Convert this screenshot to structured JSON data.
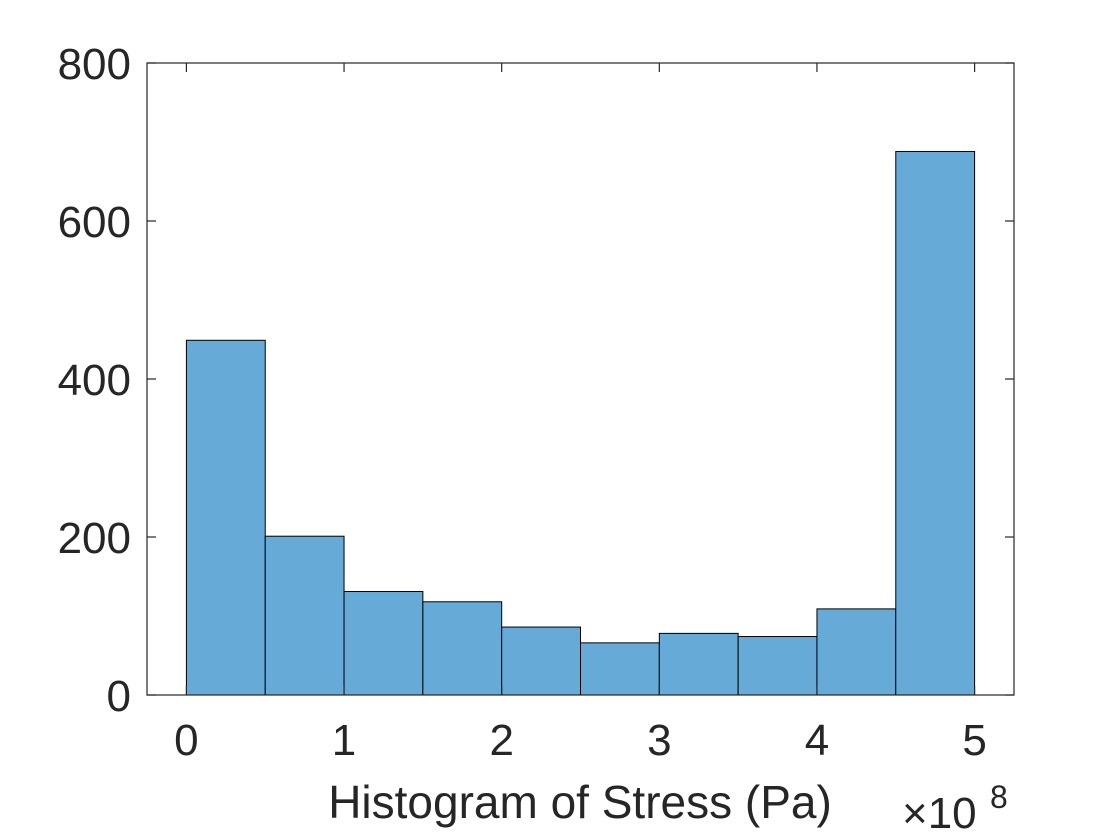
{
  "chart_data": {
    "type": "bar",
    "bin_edges": [
      0,
      0.5,
      1,
      1.5,
      2,
      2.5,
      3,
      3.5,
      4,
      4.5,
      5
    ],
    "values": [
      449,
      201,
      131,
      118,
      86,
      66,
      78,
      74,
      109,
      688
    ],
    "xlabel": "Histogram of Stress (Pa)",
    "x_exponent_prefix": "×10",
    "x_exponent": "8",
    "xlim": [
      -0.25,
      5.25
    ],
    "ylim": [
      0,
      800
    ],
    "xticks": [
      0,
      1,
      2,
      3,
      4,
      5
    ],
    "xtick_labels": [
      "0",
      "1",
      "2",
      "3",
      "4",
      "5"
    ],
    "yticks": [
      0,
      200,
      400,
      600,
      800
    ],
    "ytick_labels": [
      "0",
      "200",
      "400",
      "600",
      "800"
    ],
    "grid": false,
    "bar_color": "#66aad8",
    "edge_color": "#000000"
  }
}
